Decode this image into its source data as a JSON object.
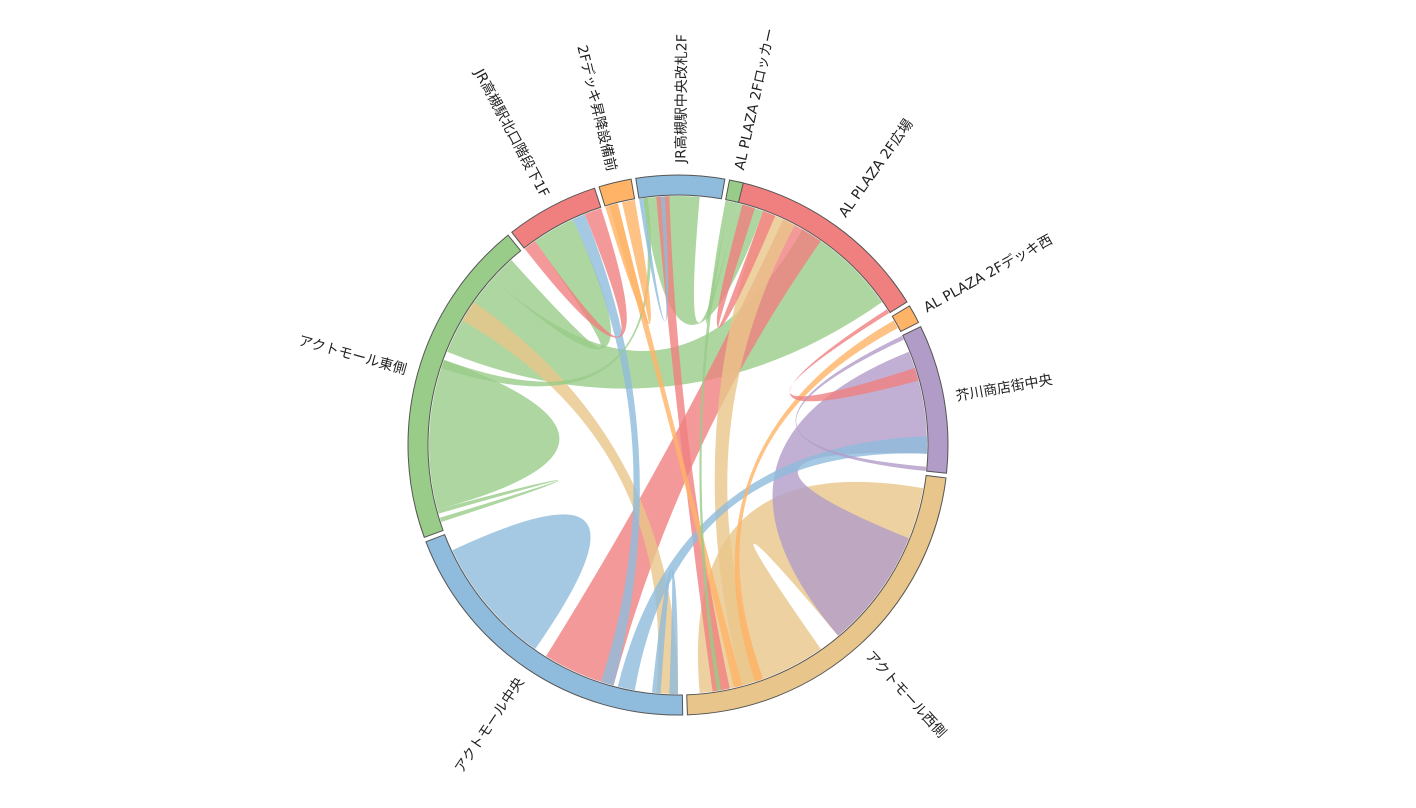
{
  "chart_data": {
    "type": "chord",
    "title": "",
    "groups": [
      {
        "name": "AL PLAZA 2F広場",
        "color": "#f08080",
        "start_deg": 13,
        "end_deg": 58
      },
      {
        "name": "AL PLAZA 2Fデッキ西",
        "color": "#ffb366",
        "start_deg": 59,
        "end_deg": 63
      },
      {
        "name": "芥川商店街中央",
        "color": "#b19cc8",
        "start_deg": 64,
        "end_deg": 96
      },
      {
        "name": "アクトモール西側",
        "color": "#e8c58a",
        "start_deg": 97,
        "end_deg": 178
      },
      {
        "name": "アクトモール中央",
        "color": "#8fbbdc",
        "start_deg": 179,
        "end_deg": 249
      },
      {
        "name": "アクトモール東側",
        "color": "#99cc88",
        "start_deg": 250,
        "end_deg": 321
      },
      {
        "name": "JR高槻駅北口階段下1F",
        "color": "#f08080",
        "start_deg": 322,
        "end_deg": 342
      },
      {
        "name": "2Fデッキ昇降設備前",
        "color": "#ffb366",
        "start_deg": 343,
        "end_deg": 350
      },
      {
        "name": "JR高槻駅中央改札2F",
        "color": "#8fbbdc",
        "start_deg": 351,
        "end_deg": 370
      },
      {
        "name": "AL PLAZA 2Fロッカー",
        "color": "#99cc88",
        "start_deg": 371,
        "end_deg": 374
      }
    ],
    "flows": [
      {
        "source": 5,
        "target": 5,
        "s_start": 255,
        "s_end": 290,
        "t_start": 255,
        "t_end": 290,
        "color": "#99cc88"
      },
      {
        "source": 5,
        "target": 0,
        "s_start": 292,
        "s_end": 312,
        "t_start": 30,
        "t_end": 55,
        "color": "#99cc88"
      },
      {
        "source": 4,
        "target": 4,
        "s_start": 215,
        "s_end": 245,
        "t_start": 215,
        "t_end": 245,
        "color": "#8fbbdc"
      },
      {
        "source": 3,
        "target": 3,
        "s_start": 100,
        "s_end": 140,
        "t_start": 145,
        "t_end": 175,
        "color": "#e8c58a"
      },
      {
        "source": 2,
        "target": 3,
        "s_start": 68,
        "s_end": 92,
        "t_start": 112,
        "t_end": 140,
        "color": "#b19cc8"
      },
      {
        "source": 4,
        "target": 0,
        "s_start": 195,
        "s_end": 212,
        "t_start": 25,
        "t_end": 35,
        "color": "#f08080"
      },
      {
        "source": 0,
        "target": 3,
        "s_start": 20,
        "s_end": 28,
        "t_start": 160,
        "t_end": 165,
        "color": "#e8c58a"
      },
      {
        "source": 3,
        "target": 5,
        "s_start": 180,
        "s_end": 185,
        "t_start": 300,
        "t_end": 305,
        "color": "#e8c58a"
      },
      {
        "source": 6,
        "target": 5,
        "s_start": 325,
        "s_end": 335,
        "t_start": 312,
        "t_end": 318,
        "color": "#99cc88"
      },
      {
        "source": 8,
        "target": 0,
        "s_start": 352,
        "s_end": 365,
        "t_start": 14,
        "t_end": 20,
        "color": "#99cc88"
      },
      {
        "source": 8,
        "target": 3,
        "s_start": 355,
        "s_end": 358,
        "t_start": 168,
        "t_end": 172,
        "color": "#f08080"
      },
      {
        "source": 4,
        "target": 2,
        "s_start": 190,
        "s_end": 194,
        "t_start": 88,
        "t_end": 92,
        "color": "#8fbbdc"
      },
      {
        "source": 6,
        "target": 4,
        "s_start": 335,
        "s_end": 338,
        "t_start": 195,
        "t_end": 198,
        "color": "#8fbbdc"
      },
      {
        "source": 7,
        "target": 3,
        "s_start": 344,
        "s_end": 346,
        "t_start": 165,
        "t_end": 167,
        "color": "#ffb366"
      },
      {
        "source": 1,
        "target": 3,
        "s_start": 60,
        "s_end": 62,
        "t_start": 160,
        "t_end": 162,
        "color": "#ffb366"
      },
      {
        "source": 2,
        "target": 0,
        "s_start": 72,
        "s_end": 75,
        "t_start": 57,
        "t_end": 58,
        "color": "#f08080"
      },
      {
        "source": 9,
        "target": 3,
        "s_start": 371,
        "s_end": 372,
        "t_start": 170,
        "t_end": 171,
        "color": "#99cc88"
      },
      {
        "source": 5,
        "target": 8,
        "s_start": 288,
        "s_end": 290,
        "t_start": 352,
        "t_end": 353,
        "color": "#99cc88"
      },
      {
        "source": 6,
        "target": 6,
        "s_start": 322,
        "s_end": 325,
        "t_start": 338,
        "t_end": 342,
        "color": "#f08080"
      },
      {
        "source": 7,
        "target": 7,
        "s_start": 343,
        "s_end": 346,
        "t_start": 347,
        "t_end": 350,
        "color": "#ffb366"
      },
      {
        "source": 8,
        "target": 8,
        "s_start": 351,
        "s_end": 352,
        "t_start": 356,
        "t_end": 357,
        "color": "#8fbbdc"
      },
      {
        "source": 0,
        "target": 0,
        "s_start": 15,
        "s_end": 18,
        "t_start": 20,
        "t_end": 23,
        "color": "#f08080"
      },
      {
        "source": 5,
        "target": 5,
        "s_start": 252,
        "s_end": 253,
        "t_start": 254,
        "t_end": 255,
        "color": "#99cc88"
      },
      {
        "source": 4,
        "target": 4,
        "s_start": 180,
        "s_end": 182,
        "t_start": 184,
        "t_end": 186,
        "color": "#8fbbdc"
      },
      {
        "source": 2,
        "target": 2,
        "s_start": 64,
        "s_end": 65,
        "t_start": 95,
        "t_end": 96,
        "color": "#b19cc8"
      },
      {
        "source": 9,
        "target": 9,
        "s_start": 372,
        "s_end": 373,
        "t_start": 373,
        "t_end": 374,
        "color": "#99cc88"
      }
    ]
  }
}
